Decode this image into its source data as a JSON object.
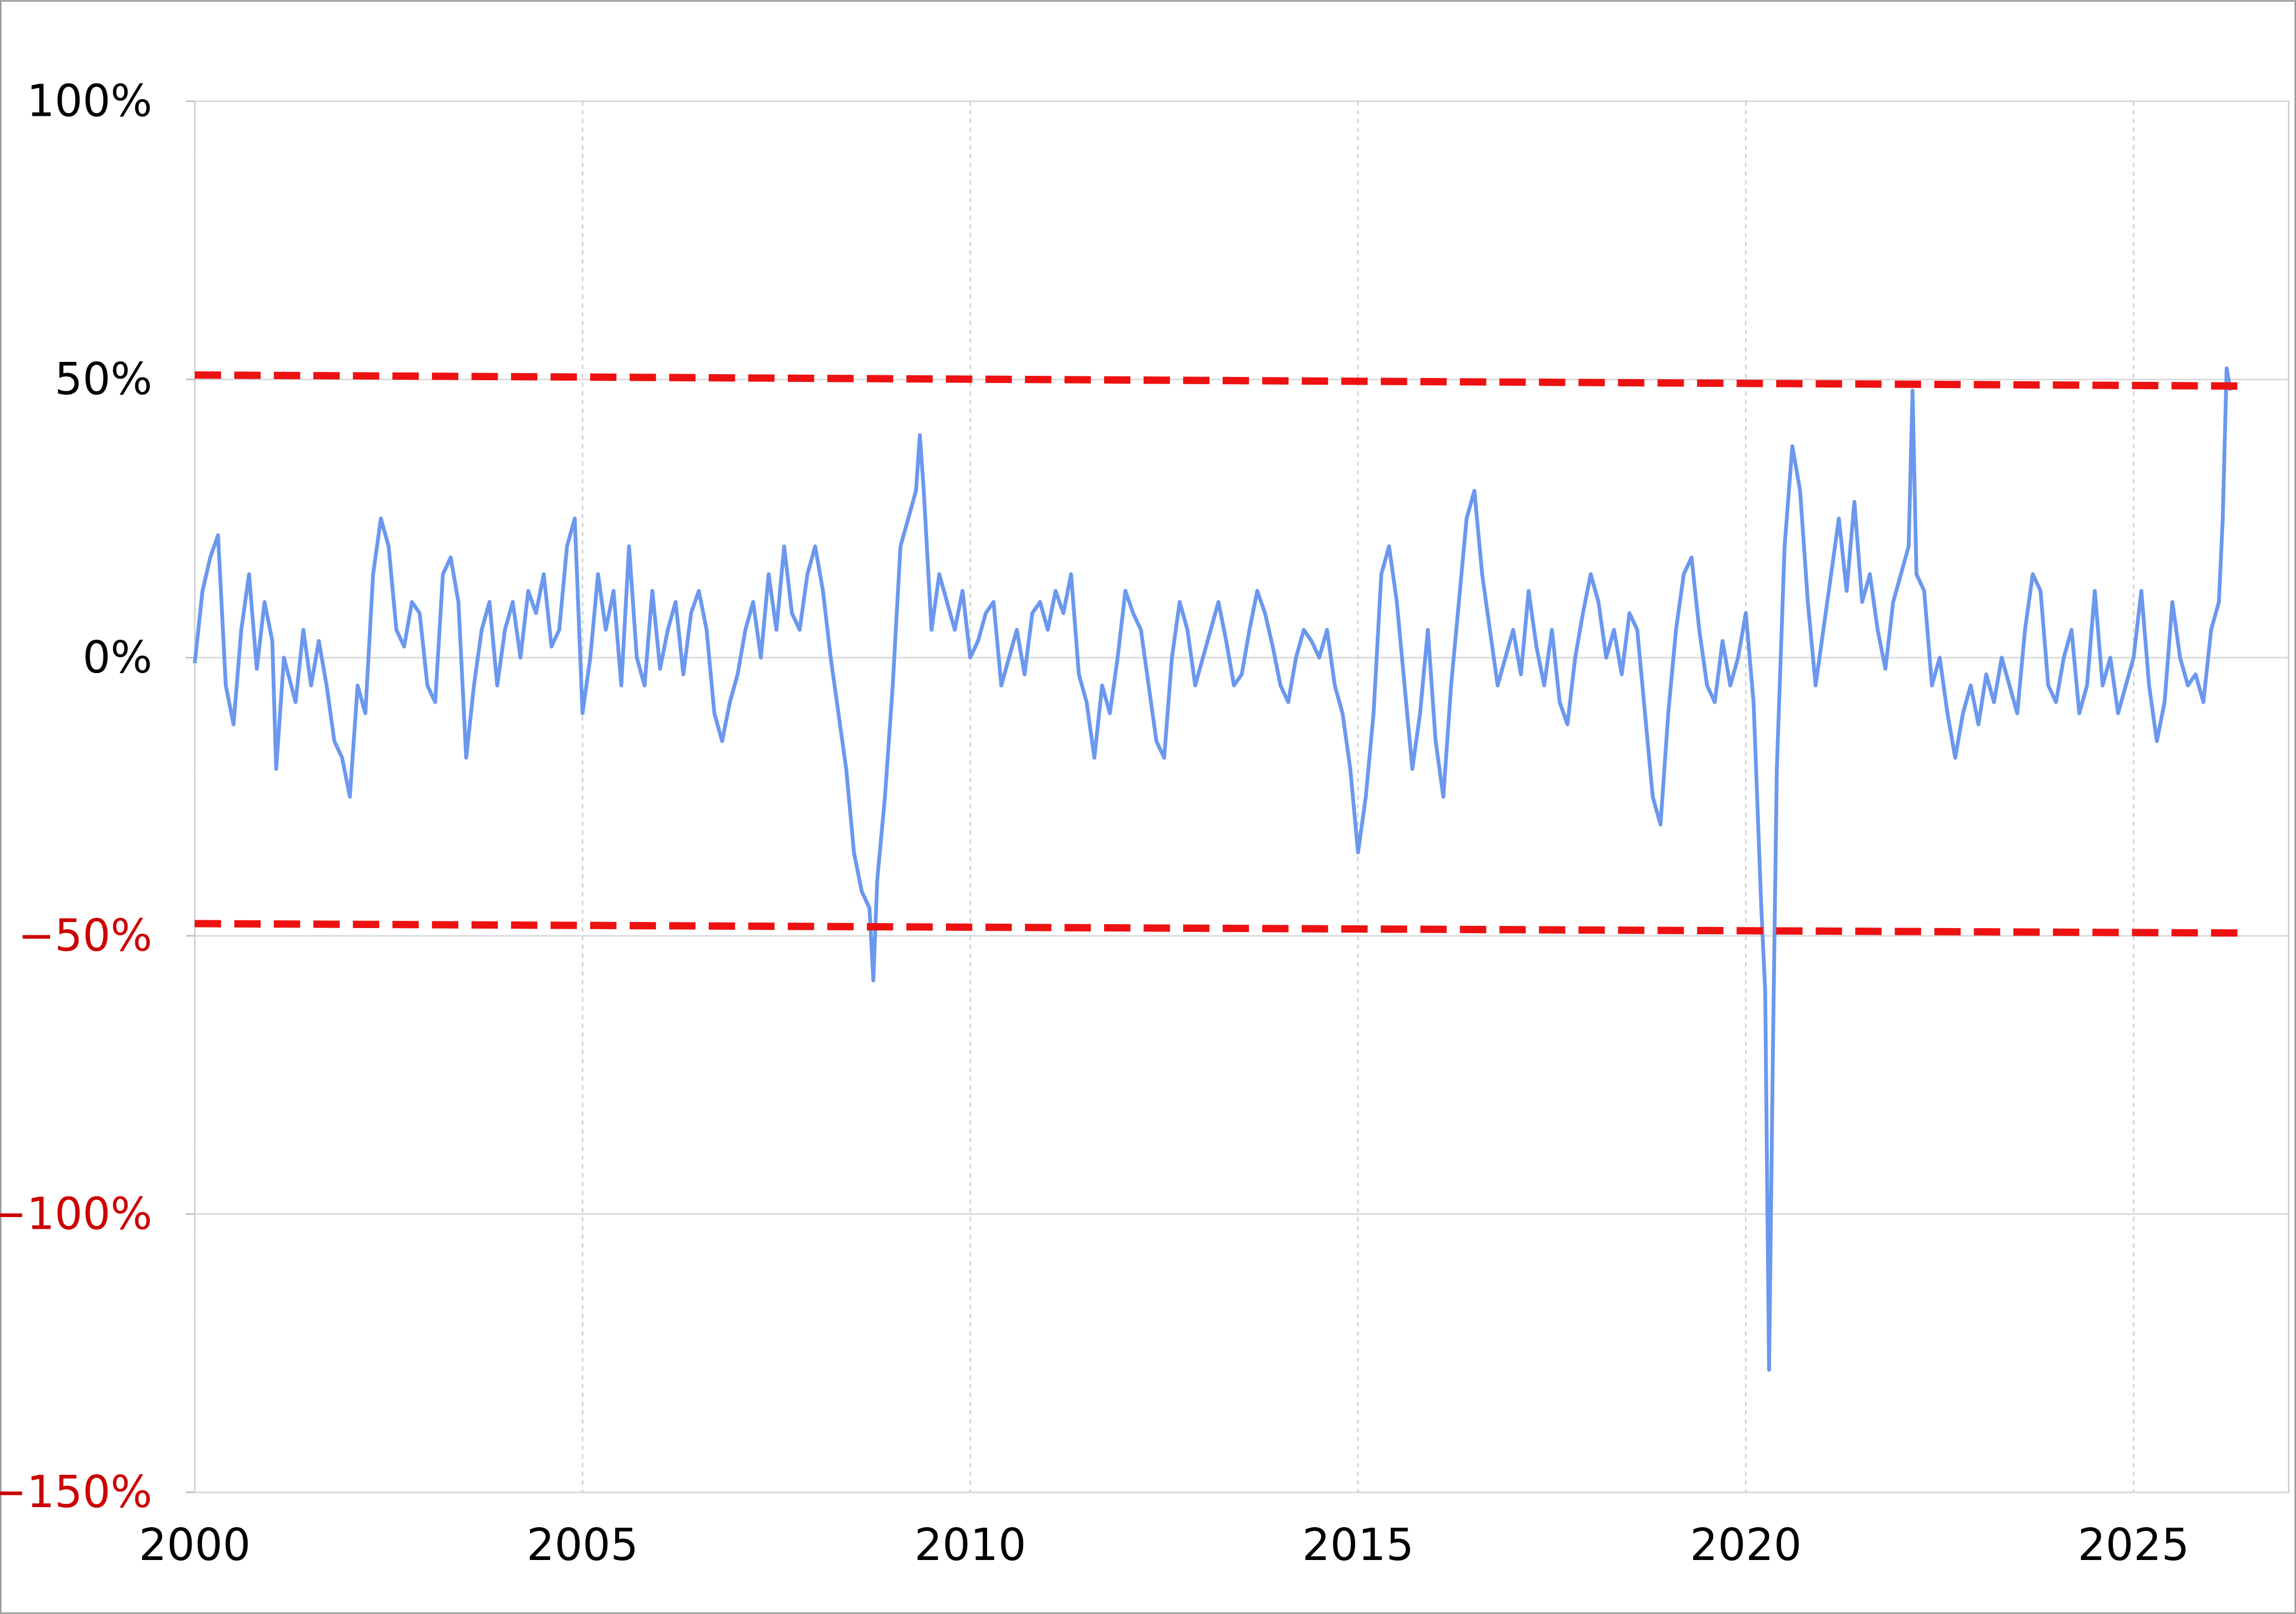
{
  "chart_data": {
    "type": "line",
    "xlim": [
      2000,
      2027
    ],
    "xticks": [
      2000,
      2005,
      2010,
      2015,
      2020,
      2025
    ],
    "ylim": [
      -150,
      100
    ],
    "yticks": [
      {
        "value": -150,
        "label": "−150%"
      },
      {
        "value": -100,
        "label": "−100%"
      },
      {
        "value": -50,
        "label": "−50%"
      },
      {
        "value": 0,
        "label": "0%"
      },
      {
        "value": 50,
        "label": "50%"
      },
      {
        "value": 100,
        "label": "100%"
      }
    ],
    "grid": true,
    "negative_label_color": "#cc0000",
    "series": [
      {
        "color": "#6b98ee",
        "style": "solid",
        "x": [
          2000.0,
          2000.1,
          2000.2,
          2000.3,
          2000.4,
          2000.5,
          2000.6,
          2000.7,
          2000.8,
          2000.9,
          2001.0,
          2001.05,
          2001.15,
          2001.3,
          2001.4,
          2001.5,
          2001.6,
          2001.7,
          2001.8,
          2001.9,
          2002.0,
          2002.1,
          2002.2,
          2002.3,
          2002.4,
          2002.5,
          2002.6,
          2002.7,
          2002.8,
          2002.9,
          2003.0,
          2003.1,
          2003.2,
          2003.3,
          2003.4,
          2003.5,
          2003.6,
          2003.7,
          2003.8,
          2003.9,
          2004.0,
          2004.1,
          2004.2,
          2004.3,
          2004.4,
          2004.5,
          2004.6,
          2004.7,
          2004.8,
          2004.9,
          2005.0,
          2005.1,
          2005.2,
          2005.3,
          2005.4,
          2005.5,
          2005.6,
          2005.7,
          2005.8,
          2005.9,
          2006.0,
          2006.1,
          2006.2,
          2006.3,
          2006.4,
          2006.5,
          2006.6,
          2006.7,
          2006.8,
          2006.9,
          2007.0,
          2007.1,
          2007.2,
          2007.3,
          2007.4,
          2007.5,
          2007.6,
          2007.7,
          2007.8,
          2007.9,
          2008.0,
          2008.1,
          2008.2,
          2008.3,
          2008.4,
          2008.5,
          2008.6,
          2008.7,
          2008.75,
          2008.8,
          2008.9,
          2009.0,
          2009.1,
          2009.2,
          2009.3,
          2009.35,
          2009.4,
          2009.5,
          2009.6,
          2009.7,
          2009.8,
          2009.9,
          2010.0,
          2010.1,
          2010.2,
          2010.3,
          2010.4,
          2010.5,
          2010.6,
          2010.7,
          2010.8,
          2010.9,
          2011.0,
          2011.1,
          2011.2,
          2011.3,
          2011.4,
          2011.5,
          2011.6,
          2011.7,
          2011.8,
          2011.9,
          2012.0,
          2012.1,
          2012.2,
          2012.3,
          2012.4,
          2012.5,
          2012.6,
          2012.7,
          2012.8,
          2012.9,
          2013.0,
          2013.1,
          2013.2,
          2013.3,
          2013.4,
          2013.5,
          2013.6,
          2013.7,
          2013.8,
          2013.9,
          2014.0,
          2014.1,
          2014.2,
          2014.3,
          2014.4,
          2014.5,
          2014.6,
          2014.7,
          2014.8,
          2014.9,
          2015.0,
          2015.1,
          2015.2,
          2015.3,
          2015.4,
          2015.5,
          2015.6,
          2015.7,
          2015.8,
          2015.9,
          2016.0,
          2016.1,
          2016.2,
          2016.3,
          2016.4,
          2016.5,
          2016.6,
          2016.7,
          2016.8,
          2016.9,
          2017.0,
          2017.1,
          2017.2,
          2017.3,
          2017.4,
          2017.5,
          2017.6,
          2017.7,
          2017.8,
          2017.9,
          2018.0,
          2018.1,
          2018.2,
          2018.3,
          2018.4,
          2018.5,
          2018.6,
          2018.7,
          2018.8,
          2018.9,
          2019.0,
          2019.1,
          2019.2,
          2019.3,
          2019.4,
          2019.5,
          2019.6,
          2019.7,
          2019.8,
          2019.9,
          2020.0,
          2020.1,
          2020.2,
          2020.25,
          2020.3,
          2020.35,
          2020.4,
          2020.5,
          2020.6,
          2020.7,
          2020.8,
          2020.9,
          2021.0,
          2021.1,
          2021.2,
          2021.3,
          2021.4,
          2021.5,
          2021.6,
          2021.7,
          2021.8,
          2021.9,
          2022.0,
          2022.1,
          2022.15,
          2022.2,
          2022.3,
          2022.4,
          2022.5,
          2022.6,
          2022.7,
          2022.8,
          2022.9,
          2023.0,
          2023.1,
          2023.2,
          2023.3,
          2023.4,
          2023.5,
          2023.6,
          2023.7,
          2023.8,
          2023.9,
          2024.0,
          2024.1,
          2024.2,
          2024.3,
          2024.4,
          2024.5,
          2024.6,
          2024.7,
          2024.8,
          2024.9,
          2025.0,
          2025.1,
          2025.2,
          2025.3,
          2025.4,
          2025.5,
          2025.6,
          2025.7,
          2025.8,
          2025.9,
          2026.0,
          2026.1,
          2026.15,
          2026.2,
          2026.25
        ],
        "values": [
          -1,
          12,
          18,
          22,
          -5,
          -12,
          5,
          15,
          -2,
          10,
          3,
          -20,
          0,
          -8,
          5,
          -5,
          3,
          -5,
          -15,
          -18,
          -25,
          -5,
          -10,
          15,
          25,
          20,
          5,
          2,
          10,
          8,
          -5,
          -8,
          15,
          18,
          10,
          -18,
          -5,
          5,
          10,
          -5,
          5,
          10,
          0,
          12,
          8,
          15,
          2,
          5,
          20,
          25,
          -10,
          0,
          15,
          5,
          12,
          -5,
          20,
          0,
          -5,
          12,
          -2,
          5,
          10,
          -3,
          8,
          12,
          5,
          -10,
          -15,
          -8,
          -3,
          5,
          10,
          0,
          15,
          5,
          20,
          8,
          5,
          15,
          20,
          12,
          0,
          -10,
          -20,
          -35,
          -42,
          -45,
          -58,
          -40,
          -25,
          -5,
          20,
          25,
          30,
          40,
          30,
          5,
          15,
          10,
          5,
          12,
          0,
          3,
          8,
          10,
          -5,
          0,
          5,
          -3,
          8,
          10,
          5,
          12,
          8,
          15,
          -3,
          -8,
          -18,
          -5,
          -10,
          0,
          12,
          8,
          5,
          -5,
          -15,
          -18,
          0,
          10,
          5,
          -5,
          0,
          5,
          10,
          3,
          -5,
          -3,
          5,
          12,
          8,
          2,
          -5,
          -8,
          0,
          5,
          3,
          0,
          5,
          -5,
          -10,
          -20,
          -35,
          -25,
          -10,
          15,
          20,
          10,
          -5,
          -20,
          -10,
          5,
          -15,
          -25,
          -5,
          10,
          25,
          30,
          15,
          5,
          -5,
          0,
          5,
          -3,
          12,
          2,
          -5,
          5,
          -8,
          -12,
          0,
          8,
          15,
          10,
          0,
          5,
          -3,
          8,
          5,
          -10,
          -25,
          -30,
          -10,
          5,
          15,
          18,
          5,
          -5,
          -8,
          3,
          -5,
          0,
          8,
          -8,
          -45,
          -60,
          -128,
          -70,
          -20,
          20,
          38,
          30,
          10,
          -5,
          5,
          15,
          25,
          12,
          28,
          10,
          15,
          5,
          -2,
          10,
          15,
          20,
          48,
          15,
          12,
          -5,
          0,
          -10,
          -18,
          -10,
          -5,
          -12,
          -3,
          -8,
          0,
          -5,
          -10,
          5,
          15,
          12,
          -5,
          -8,
          0,
          5,
          -10,
          -5,
          12,
          -5,
          0,
          -10,
          -5,
          0,
          12,
          -5,
          -15,
          -8,
          10,
          0,
          -5,
          -3,
          -8,
          5,
          10,
          25,
          52,
          48
        ]
      },
      {
        "color": "#ee1111",
        "style": "dashed",
        "x": [
          2000,
          2026.5
        ],
        "values": [
          50.8,
          48.8
        ]
      },
      {
        "color": "#ee1111",
        "style": "dashed",
        "x": [
          2000,
          2026.5
        ],
        "values": [
          -47.8,
          -49.5
        ]
      }
    ]
  }
}
